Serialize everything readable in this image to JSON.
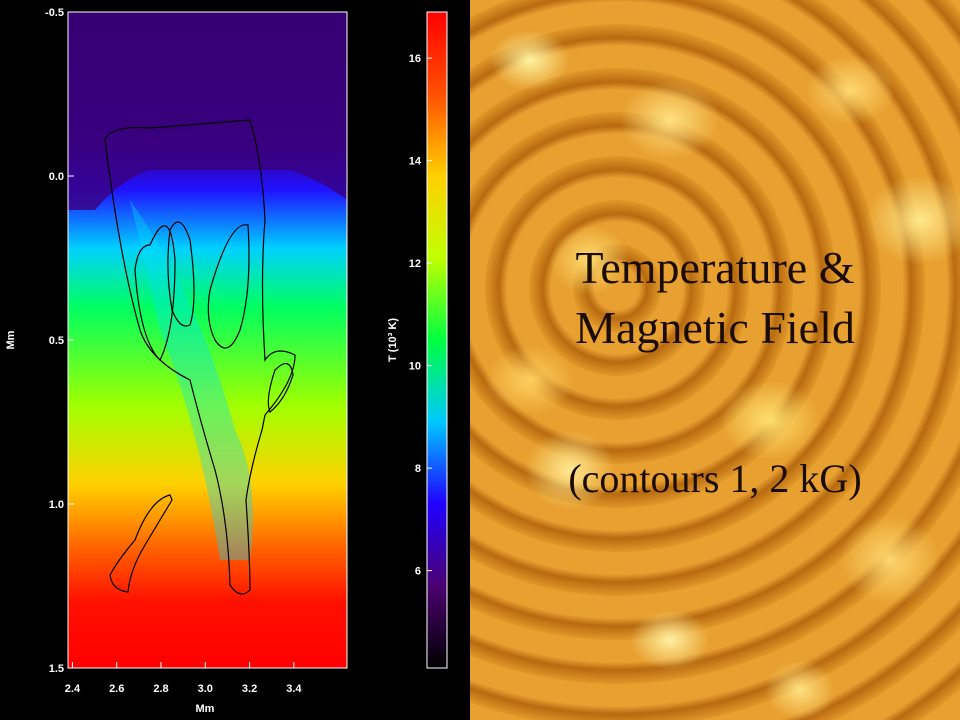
{
  "slide": {
    "title_lines": [
      "Temperature &",
      "Magnetic Field"
    ],
    "subtitle": "(contours 1, 2 kG)"
  },
  "chart_data": {
    "type": "heatmap",
    "xlabel": "Mm",
    "ylabel": "Mm",
    "colorbar_label": "T (10³ K)",
    "xlim": [
      2.38,
      3.64
    ],
    "ylim": [
      1.5,
      -0.5
    ],
    "xticks": [
      2.4,
      2.6,
      2.8,
      {
        "value": 3.0,
        "label": "3.0"
      },
      3.2,
      3.4
    ],
    "yticks": [
      -0.5,
      {
        "value": 0,
        "label": "0.0"
      },
      0.5,
      {
        "value": 1.0,
        "label": "1.0"
      },
      1.5
    ],
    "clim": [
      4.1,
      16.9
    ],
    "cticks": [
      6,
      8,
      10,
      12,
      14,
      16
    ],
    "colormap": [
      "#000000",
      "#4b0070",
      "#2000ff",
      "#00c8ff",
      "#00ff40",
      "#c0ff00",
      "#ffd000",
      "#ff5000",
      "#ff0000"
    ]
  }
}
